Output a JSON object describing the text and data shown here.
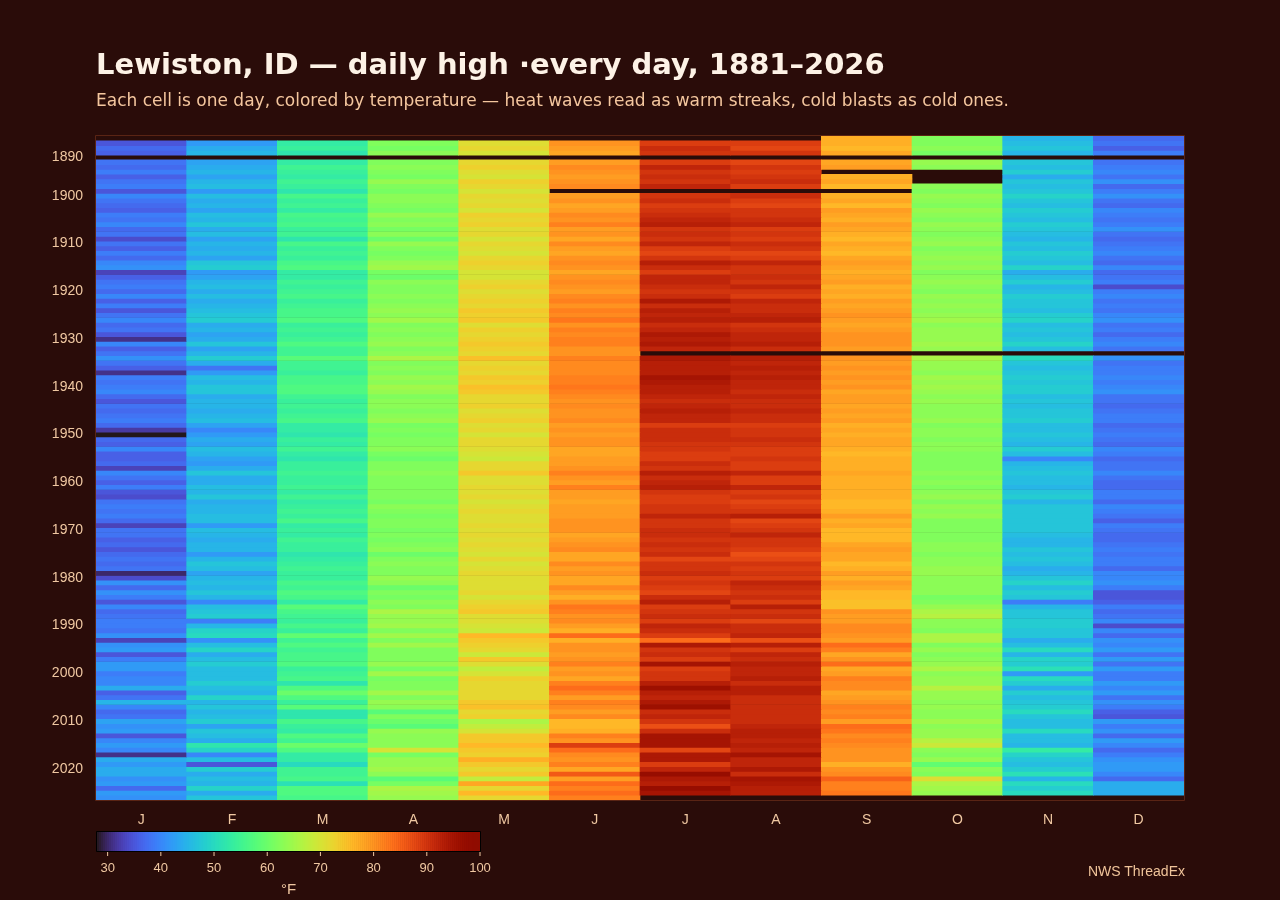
{
  "chart_data": {
    "type": "heatmap",
    "title": "Lewiston, ID — daily high ·every day, 1881–2026",
    "subtitle": "Each cell is one day, colored by temperature — heat waves read as warm streaks, cold blasts as cold ones.",
    "clabel": "°F",
    "annotations": [
      "NWS ThreadEx"
    ],
    "categories": [
      "J",
      "F",
      "M",
      "A",
      "M",
      "J",
      "J",
      "A",
      "S",
      "O",
      "N",
      "D"
    ],
    "y_categories": [
      null,
      null,
      null,
      null,
      "1890",
      null,
      null,
      null,
      null,
      null,
      null,
      null,
      "1900",
      null,
      null,
      null,
      null,
      null,
      null,
      null,
      null,
      null,
      "1910",
      null,
      null,
      null,
      null,
      null,
      null,
      null,
      null,
      null,
      "1920",
      null,
      null,
      null,
      null,
      null,
      null,
      null,
      null,
      null,
      "1930",
      null,
      null,
      null,
      null,
      null,
      null,
      null,
      null,
      null,
      "1940",
      null,
      null,
      null,
      null,
      null,
      null,
      null,
      null,
      null,
      "1950",
      null,
      null,
      null,
      null,
      null,
      null,
      null,
      null,
      null,
      "1960",
      null,
      null,
      null,
      null,
      null,
      null,
      null,
      null,
      null,
      "1970",
      null,
      null,
      null,
      null,
      null,
      null,
      null,
      null,
      null,
      "1980",
      null,
      null,
      null,
      null,
      null,
      null,
      null,
      null,
      null,
      "1990",
      null,
      null,
      null,
      null,
      null,
      null,
      null,
      null,
      null,
      "2000",
      null,
      null,
      null,
      null,
      null,
      null,
      null,
      null,
      null,
      "2010",
      null,
      null,
      null,
      null,
      null,
      null,
      null,
      null,
      null,
      "2020",
      null,
      null,
      null,
      null,
      null,
      null
    ],
    "clim": [
      28,
      100
    ],
    "cticks": [
      30,
      40,
      50,
      60,
      70,
      80,
      90,
      100
    ],
    "cells": [
      [
        null,
        null,
        null,
        null,
        null,
        null,
        null,
        null,
        77,
        62,
        45,
        37
      ],
      [
        35,
        42,
        53,
        62,
        71,
        80,
        89,
        89,
        77,
        62,
        46,
        38
      ],
      [
        37,
        44,
        54,
        61,
        72,
        79,
        91,
        88,
        76,
        63,
        47,
        36
      ],
      [
        36,
        45,
        52,
        63,
        70,
        78,
        90,
        90,
        78,
        61,
        45,
        39
      ],
      [
        null,
        null,
        null,
        null,
        null,
        null,
        null,
        null,
        null,
        null,
        null,
        null
      ],
      [
        38,
        43,
        53,
        62,
        72,
        79,
        89,
        88,
        78,
        64,
        47,
        38
      ],
      [
        37,
        44,
        55,
        63,
        73,
        81,
        92,
        90,
        79,
        63,
        46,
        39
      ],
      [
        39,
        45,
        54,
        62,
        71,
        80,
        90,
        89,
        null,
        null,
        48,
        40
      ],
      [
        36,
        43,
        53,
        61,
        70,
        79,
        91,
        90,
        77,
        null,
        44,
        38
      ],
      [
        38,
        45,
        55,
        64,
        73,
        80,
        90,
        91,
        78,
        null,
        47,
        41
      ],
      [
        39,
        46,
        54,
        62,
        72,
        81,
        92,
        89,
        76,
        63,
        46,
        37
      ],
      [
        35,
        42,
        52,
        61,
        70,
        null,
        null,
        null,
        null,
        62,
        47,
        39
      ],
      [
        40,
        46,
        56,
        63,
        72,
        79,
        90,
        91,
        77,
        64,
        49,
        41
      ],
      [
        38,
        44,
        54,
        63,
        71,
        80,
        91,
        89,
        78,
        63,
        47,
        38
      ],
      [
        37,
        45,
        55,
        62,
        72,
        78,
        89,
        88,
        76,
        62,
        46,
        37
      ],
      [
        36,
        43,
        53,
        61,
        70,
        79,
        90,
        90,
        79,
        64,
        48,
        40
      ],
      [
        39,
        46,
        56,
        64,
        73,
        81,
        91,
        90,
        78,
        63,
        47,
        39
      ],
      [
        38,
        45,
        55,
        62,
        72,
        80,
        92,
        91,
        77,
        62,
        46,
        38
      ],
      [
        40,
        47,
        56,
        63,
        73,
        82,
        93,
        92,
        79,
        64,
        48,
        39
      ],
      [
        37,
        44,
        54,
        61,
        71,
        79,
        90,
        89,
        78,
        63,
        47,
        41
      ],
      [
        38,
        46,
        55,
        63,
        72,
        80,
        91,
        90,
        77,
        62,
        46,
        38
      ],
      [
        34,
        43,
        52,
        60,
        70,
        78,
        90,
        89,
        76,
        63,
        45,
        37
      ],
      [
        38,
        45,
        56,
        64,
        72,
        81,
        92,
        91,
        78,
        64,
        47,
        38
      ],
      [
        36,
        44,
        54,
        62,
        71,
        79,
        89,
        90,
        77,
        62,
        46,
        39
      ],
      [
        39,
        45,
        55,
        61,
        70,
        78,
        88,
        88,
        76,
        63,
        48,
        40
      ],
      [
        37,
        43,
        54,
        62,
        72,
        80,
        90,
        89,
        78,
        64,
        47,
        38
      ],
      [
        40,
        47,
        56,
        64,
        73,
        81,
        93,
        92,
        79,
        63,
        46,
        37
      ],
      [
        41,
        48,
        57,
        65,
        72,
        80,
        91,
        90,
        78,
        64,
        49,
        40
      ],
      [
        33,
        42,
        53,
        61,
        70,
        78,
        89,
        90,
        77,
        62,
        44,
        37
      ],
      [
        36,
        43,
        53,
        60,
        70,
        80,
        92,
        91,
        78,
        63,
        46,
        38
      ],
      [
        38,
        45,
        55,
        63,
        72,
        81,
        92,
        90,
        79,
        64,
        48,
        39
      ],
      [
        39,
        46,
        54,
        62,
        73,
        80,
        91,
        92,
        77,
        63,
        45,
        34
      ],
      [
        37,
        44,
        55,
        62,
        71,
        79,
        90,
        90,
        78,
        62,
        46,
        39
      ],
      [
        40,
        46,
        56,
        63,
        72,
        81,
        91,
        89,
        77,
        64,
        48,
        40
      ],
      [
        36,
        44,
        54,
        62,
        73,
        82,
        94,
        92,
        79,
        63,
        47,
        38
      ],
      [
        39,
        45,
        55,
        63,
        72,
        80,
        91,
        91,
        78,
        64,
        47,
        39
      ],
      [
        35,
        46,
        56,
        64,
        74,
        82,
        93,
        91,
        79,
        63,
        46,
        38
      ],
      [
        38,
        47,
        56,
        63,
        73,
        81,
        92,
        92,
        80,
        64,
        48,
        40
      ],
      [
        40,
        48,
        57,
        65,
        74,
        83,
        93,
        93,
        79,
        65,
        49,
        41
      ],
      [
        37,
        44,
        54,
        62,
        71,
        80,
        91,
        90,
        78,
        63,
        46,
        38
      ],
      [
        38,
        45,
        55,
        63,
        73,
        82,
        92,
        91,
        79,
        64,
        47,
        39
      ],
      [
        35,
        43,
        54,
        62,
        72,
        81,
        94,
        92,
        80,
        64,
        46,
        37
      ],
      [
        31,
        44,
        55,
        63,
        73,
        82,
        93,
        92,
        80,
        64,
        47,
        39
      ],
      [
        40,
        47,
        57,
        64,
        74,
        82,
        94,
        93,
        80,
        65,
        49,
        40
      ],
      [
        36,
        43,
        55,
        62,
        73,
        80,
        92,
        91,
        79,
        64,
        46,
        38
      ],
      [
        38,
        45,
        55,
        63,
        72,
        80,
        null,
        null,
        null,
        null,
        null,
        null
      ],
      [
        41,
        48,
        58,
        66,
        75,
        82,
        94,
        93,
        80,
        66,
        50,
        41
      ],
      [
        38,
        44,
        55,
        62,
        72,
        81,
        93,
        92,
        79,
        64,
        47,
        38
      ],
      [
        36,
        38,
        55,
        63,
        73,
        81,
        93,
        93,
        80,
        64,
        46,
        39
      ],
      [
        31,
        42,
        54,
        62,
        72,
        81,
        93,
        92,
        79,
        63,
        47,
        39
      ],
      [
        39,
        46,
        56,
        64,
        74,
        82,
        95,
        93,
        80,
        65,
        48,
        40
      ],
      [
        38,
        45,
        56,
        63,
        73,
        82,
        94,
        92,
        79,
        64,
        47,
        39
      ],
      [
        39,
        47,
        57,
        65,
        75,
        83,
        93,
        92,
        80,
        65,
        48,
        40
      ],
      [
        40,
        47,
        57,
        64,
        74,
        82,
        93,
        91,
        78,
        64,
        48,
        41
      ],
      [
        37,
        44,
        55,
        62,
        72,
        81,
        92,
        92,
        79,
        63,
        46,
        38
      ],
      [
        35,
        45,
        54,
        63,
        72,
        80,
        91,
        91,
        79,
        64,
        47,
        38
      ],
      [
        38,
        45,
        55,
        63,
        73,
        81,
        92,
        91,
        78,
        63,
        46,
        37
      ],
      [
        37,
        44,
        54,
        62,
        71,
        80,
        93,
        92,
        79,
        63,
        47,
        38
      ],
      [
        38,
        45,
        55,
        63,
        72,
        80,
        92,
        91,
        78,
        63,
        47,
        39
      ],
      [
        39,
        46,
        56,
        64,
        73,
        81,
        92,
        91,
        79,
        64,
        48,
        39
      ],
      [
        37,
        43,
        53,
        61,
        71,
        79,
        89,
        89,
        77,
        62,
        46,
        37
      ],
      [
        32,
        40,
        53,
        62,
        72,
        80,
        91,
        90,
        78,
        63,
        46,
        38
      ],
      [
        28,
        42,
        52,
        61,
        70,
        79,
        91,
        90,
        77,
        63,
        47,
        39
      ],
      [
        37,
        44,
        54,
        62,
        72,
        80,
        91,
        91,
        78,
        62,
        46,
        38
      ],
      [
        36,
        43,
        53,
        62,
        72,
        80,
        90,
        90,
        78,
        63,
        45,
        37
      ],
      [
        40,
        46,
        55,
        63,
        71,
        78,
        90,
        89,
        77,
        63,
        48,
        40
      ],
      [
        36,
        45,
        53,
        61,
        70,
        78,
        89,
        89,
        76,
        62,
        46,
        39
      ],
      [
        36,
        43,
        52,
        60,
        69,
        79,
        89,
        90,
        77,
        62,
        40,
        37
      ],
      [
        37,
        42,
        54,
        62,
        72,
        79,
        91,
        89,
        77,
        62,
        45,
        38
      ],
      [
        33,
        44,
        54,
        62,
        72,
        80,
        90,
        89,
        77,
        62,
        46,
        38
      ],
      [
        40,
        47,
        55,
        63,
        74,
        82,
        93,
        92,
        78,
        63,
        47,
        40
      ],
      [
        38,
        44,
        54,
        62,
        71,
        80,
        91,
        89,
        77,
        62,
        46,
        38
      ],
      [
        36,
        44,
        54,
        62,
        71,
        79,
        92,
        89,
        77,
        63,
        46,
        37
      ],
      [
        39,
        46,
        55,
        62,
        72,
        82,
        93,
        92,
        77,
        62,
        45,
        37
      ],
      [
        35,
        45,
        53,
        62,
        71,
        79,
        90,
        89,
        77,
        63,
        47,
        39
      ],
      [
        34,
        47,
        55,
        62,
        72,
        79,
        89,
        90,
        77,
        64,
        48,
        39
      ],
      [
        38,
        44,
        53,
        61,
        70,
        78,
        89,
        88,
        76,
        62,
        45,
        37
      ],
      [
        39,
        45,
        54,
        63,
        71,
        79,
        90,
        89,
        76,
        64,
        47,
        40
      ],
      [
        38,
        45,
        55,
        62,
        72,
        79,
        90,
        90,
        77,
        63,
        47,
        39
      ],
      [
        39,
        46,
        54,
        61,
        71,
        79,
        92,
        93,
        79,
        64,
        47,
        38
      ],
      [
        37,
        46,
        56,
        62,
        71,
        80,
        90,
        88,
        77,
        62,
        47,
        36
      ],
      [
        33,
        42,
        53,
        62,
        72,
        80,
        90,
        89,
        78,
        62,
        47,
        39
      ],
      [
        38,
        46,
        54,
        61,
        71,
        80,
        91,
        90,
        76,
        62,
        47,
        38
      ],
      [
        38,
        45,
        53,
        62,
        72,
        78,
        91,
        92,
        76,
        62,
        46,
        37
      ],
      [
        36,
        44,
        55,
        61,
        71,
        79,
        90,
        90,
        76,
        62,
        45,
        37
      ],
      [
        37,
        45,
        54,
        62,
        72,
        80,
        91,
        90,
        78,
        63,
        45,
        38
      ],
      [
        35,
        45,
        54,
        63,
        71,
        81,
        90,
        89,
        79,
        63,
        47,
        39
      ],
      [
        37,
        42,
        52,
        60,
        70,
        78,
        91,
        87,
        78,
        62,
        46,
        38
      ],
      [
        38,
        45,
        53,
        62,
        72,
        78,
        88,
        88,
        78,
        63,
        47,
        39
      ],
      [
        37,
        47,
        54,
        63,
        70,
        81,
        90,
        90,
        76,
        63,
        46,
        39
      ],
      [
        38,
        46,
        55,
        62,
        71,
        79,
        90,
        89,
        77,
        64,
        44,
        37
      ],
      [
        30,
        43,
        54,
        62,
        72,
        80,
        91,
        90,
        79,
        64,
        45,
        40
      ],
      [
        34,
        45,
        54,
        64,
        71,
        78,
        89,
        89,
        77,
        63,
        47,
        40
      ],
      [
        41,
        46,
        56,
        63,
        71,
        78,
        90,
        92,
        79,
        63,
        49,
        41
      ],
      [
        37,
        45,
        55,
        60,
        71,
        81,
        89,
        91,
        78,
        63,
        46,
        39
      ],
      [
        41,
        47,
        57,
        62,
        72,
        79,
        88,
        90,
        76,
        63,
        48,
        35
      ],
      [
        39,
        45,
        56,
        61,
        70,
        77,
        91,
        91,
        76,
        61,
        47,
        35
      ],
      [
        35,
        40,
        53,
        63,
        72,
        80,
        93,
        89,
        75,
        62,
        39,
        36
      ],
      [
        40,
        46,
        58,
        62,
        73,
        83,
        89,
        93,
        75,
        64,
        45,
        39
      ],
      [
        37,
        47,
        56,
        66,
        74,
        82,
        90,
        90,
        80,
        66,
        47,
        37
      ],
      [
        38,
        48,
        55,
        64,
        71,
        80,
        91,
        91,
        79,
        67,
        47,
        38
      ],
      [
        39,
        39,
        54,
        64,
        71,
        81,
        89,
        88,
        79,
        63,
        48,
        40
      ],
      [
        39,
        45,
        56,
        65,
        70,
        79,
        92,
        91,
        81,
        63,
        48,
        34
      ],
      [
        38,
        49,
        54,
        62,
        69,
        77,
        91,
        91,
        81,
        62,
        47,
        40
      ],
      [
        41,
        50,
        59,
        65,
        76,
        84,
        89,
        92,
        80,
        66,
        47,
        37
      ],
      [
        33,
        41,
        55,
        62,
        74,
        77,
        84,
        87,
        79,
        66,
        44,
        41
      ],
      [
        41,
        46,
        57,
        65,
        73,
        80,
        94,
        93,
        84,
        62,
        46,
        40
      ],
      [
        42,
        49,
        55,
        62,
        72,
        80,
        90,
        89,
        82,
        64,
        50,
        42
      ],
      [
        35,
        44,
        56,
        62,
        69,
        79,
        91,
        92,
        78,
        62,
        45,
        38
      ],
      [
        39,
        46,
        56,
        62,
        74,
        80,
        89,
        91,
        80,
        63,
        49,
        42
      ],
      [
        42,
        48,
        57,
        64,
        71,
        82,
        95,
        93,
        84,
        64,
        48,
        38
      ],
      [
        42,
        46,
        54,
        61,
        68,
        79,
        89,
        92,
        78,
        66,
        51,
        42
      ],
      [
        39,
        46,
        55,
        65,
        70,
        80,
        90,
        92,
        79,
        63,
        42,
        39
      ],
      [
        40,
        46,
        56,
        61,
        73,
        78,
        90,
        93,
        82,
        64,
        50,
        39
      ],
      [
        40,
        48,
        52,
        62,
        72,
        82,
        93,
        91,
        81,
        64,
        48,
        42
      ],
      [
        44,
        46,
        57,
        62,
        72,
        84,
        96,
        93,
        81,
        67,
        44,
        40
      ],
      [
        36,
        45,
        60,
        65,
        72,
        82,
        93,
        93,
        78,
        64,
        48,
        42
      ],
      [
        38,
        49,
        57,
        62,
        72,
        79,
        92,
        91,
        79,
        64,
        46,
        38
      ],
      [
        45,
        45,
        54,
        64,
        74,
        82,
        94,
        91,
        80,
        63,
        47,
        41
      ],
      [
        40,
        47,
        58,
        63,
        75,
        81,
        96,
        91,
        82,
        64,
        48,
        39
      ],
      [
        37,
        45,
        52,
        58,
        72,
        79,
        91,
        91,
        81,
        63,
        50,
        36
      ],
      [
        38,
        46,
        52,
        62,
        73,
        81,
        92,
        91,
        82,
        63,
        47,
        35
      ],
      [
        43,
        48,
        56,
        60,
        66,
        76,
        90,
        91,
        79,
        65,
        46,
        42
      ],
      [
        41,
        43,
        54,
        58,
        68,
        76,
        87,
        92,
        84,
        63,
        46,
        39
      ],
      [
        42,
        47,
        53,
        64,
        70,
        77,
        91,
        93,
        83,
        64,
        50,
        41
      ],
      [
        35,
        46,
        57,
        63,
        74,
        82,
        95,
        93,
        81,
        64,
        46,
        37
      ],
      [
        40,
        44,
        55,
        63,
        74,
        80,
        95,
        92,
        82,
        67,
        46,
        42
      ],
      [
        42,
        52,
        60,
        63,
        76,
        89,
        95,
        93,
        81,
        69,
        45,
        40
      ],
      [
        40,
        49,
        57,
        70,
        74,
        84,
        88,
        92,
        80,
        63,
        53,
        37
      ],
      [
        31,
        40,
        53,
        61,
        73,
        81,
        94,
        95,
        80,
        62,
        49,
        39
      ],
      [
        44,
        46,
        53,
        64,
        77,
        80,
        94,
        92,
        80,
        64,
        47,
        41
      ],
      [
        42,
        35,
        50,
        64,
        74,
        82,
        89,
        92,
        77,
        59,
        46,
        42
      ],
      [
        44,
        48,
        55,
        65,
        72,
        78,
        92,
        94,
        80,
        63,
        48,
        42
      ],
      [
        44,
        44,
        55,
        63,
        74,
        86,
        97,
        91,
        81,
        62,
        51,
        40
      ],
      [
        41,
        46,
        56,
        58,
        68,
        79,
        94,
        95,
        85,
        71,
        45,
        37
      ],
      [
        42,
        45,
        51,
        61,
        78,
        84,
        93,
        94,
        82,
        66,
        50,
        44
      ],
      [
        37,
        49,
        57,
        66,
        72,
        82,
        97,
        93,
        82,
        65,
        48,
        44
      ],
      [
        42,
        44,
        57,
        65,
        76,
        84,
        95,
        93,
        83,
        64,
        50,
        44
      ],
      [
        41,
        47,
        56,
        64,
        72,
        82,
        null,
        null,
        null,
        null,
        null,
        null
      ]
    ]
  }
}
